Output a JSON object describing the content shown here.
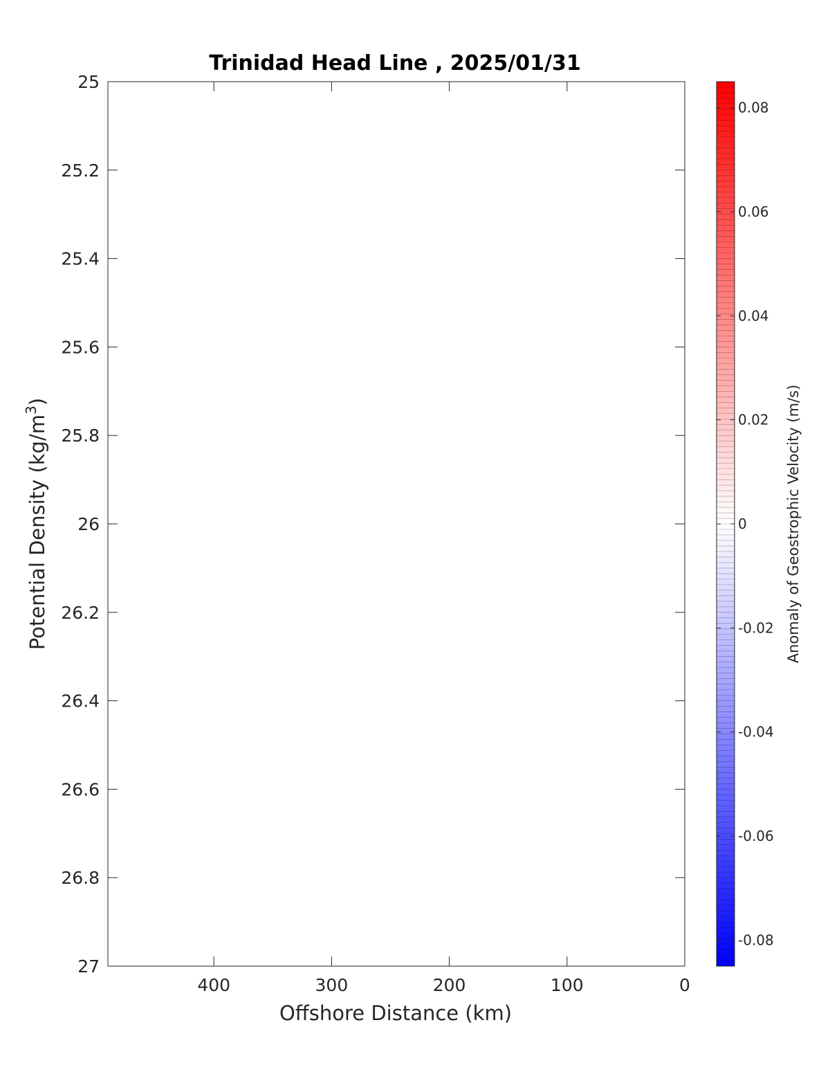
{
  "chart_data": {
    "type": "heatmap",
    "title": "Trinidad Head Line , 2025/01/31",
    "xlabel": "Offshore Distance (km)",
    "ylabel": "Potential Density (kg/m3)",
    "ylabel_main": "Potential Density (kg/m",
    "ylabel_sup": "3",
    "ylabel_tail": ")",
    "xlim": [
      490,
      0
    ],
    "x_ticks": [
      400,
      300,
      200,
      100,
      0
    ],
    "x_tick_labels": [
      "400",
      "300",
      "200",
      "100",
      "0"
    ],
    "ylim": [
      25,
      27
    ],
    "y_reversed": true,
    "y_ticks": [
      25,
      25.2,
      25.4,
      25.6,
      25.8,
      26,
      26.2,
      26.4,
      26.6,
      26.8,
      27
    ],
    "y_tick_labels": [
      "25",
      "25.2",
      "25.4",
      "25.6",
      "25.8",
      "26",
      "26.2",
      "26.4",
      "26.6",
      "26.8",
      "27"
    ],
    "values": [],
    "grid": false,
    "colorbar": {
      "label": "Anomaly of Geostrophic Velocity (m/s)",
      "range": [
        -0.085,
        0.085
      ],
      "ticks": [
        0.08,
        0.06,
        0.04,
        0.02,
        0,
        -0.02,
        -0.04,
        -0.06,
        -0.08
      ],
      "tick_labels": [
        "0.08",
        "0.06",
        "0.04",
        "0.02",
        "0",
        "-0.02",
        "-0.04",
        "-0.06",
        "-0.08"
      ],
      "colormap": "blue-white-red",
      "low_color": "#0000ff",
      "mid_color": "#ffffff",
      "high_color": "#ff0000"
    }
  }
}
